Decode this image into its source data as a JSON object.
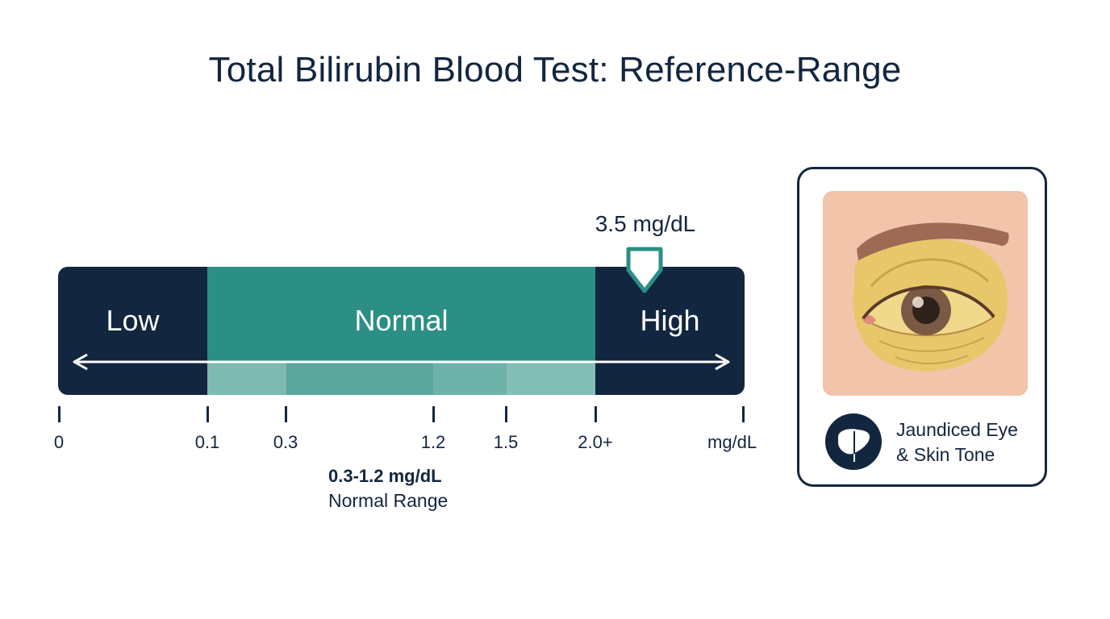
{
  "title": "Total Bilirubin Blood Test: Reference-Range",
  "zones": {
    "low": "Low",
    "normal": "Normal",
    "high": "High"
  },
  "marker": {
    "label": "3.5 mg/dL",
    "value": 3.5
  },
  "axis": {
    "ticks": [
      "0",
      "0.1",
      "0.3",
      "1.2",
      "1.5",
      "2.0+"
    ],
    "unit": "mg/dL"
  },
  "normal_note": {
    "value": "0.3-1.2 mg/dL",
    "label": "Normal Range"
  },
  "card": {
    "caption_line1": "Jaundiced Eye",
    "caption_line2": "& Skin Tone",
    "icon": "liver-icon"
  },
  "colors": {
    "navy": "#13263f",
    "teal": "#2c8f86",
    "skin": "#f2c4aa",
    "jaundice": "#e8c76a"
  }
}
